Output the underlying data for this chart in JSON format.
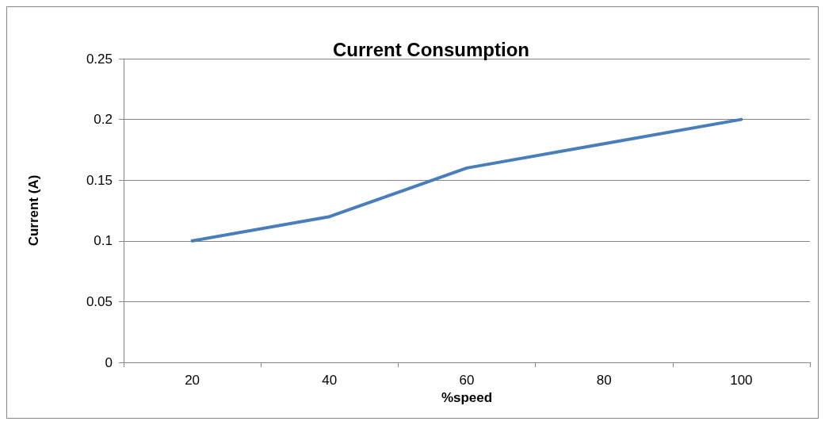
{
  "chart_data": {
    "type": "line",
    "title": "Current Consumption",
    "xlabel": "%speed",
    "ylabel": "Current (A)",
    "categories": [
      "20",
      "40",
      "60",
      "80",
      "100"
    ],
    "series": [
      {
        "color": "#4a7ebb",
        "values": [
          0.1,
          0.12,
          0.16,
          0.18,
          0.2
        ]
      }
    ],
    "ylim": [
      0,
      0.25
    ],
    "yticks": [
      0,
      0.05,
      0.1,
      0.15,
      0.2,
      0.25
    ],
    "grid": "y",
    "marker": "none",
    "line_style": "solid"
  }
}
